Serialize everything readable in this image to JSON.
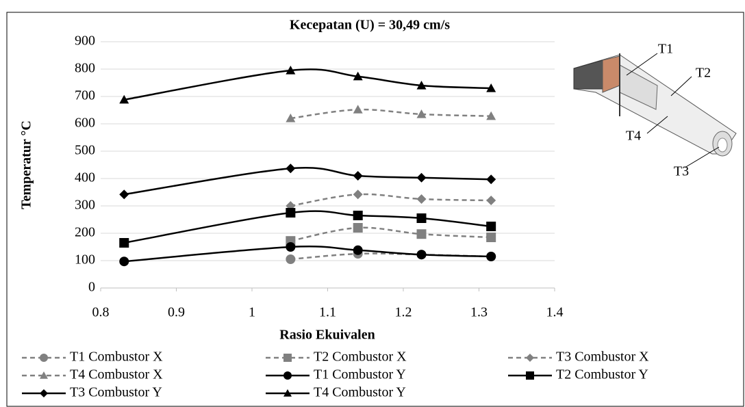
{
  "chart_data": {
    "type": "line",
    "title": "Kecepatan (U) = 30,49 cm/s",
    "x_label": "Rasio Ekuivalen",
    "y_label": "Temperatur °C",
    "x": [
      0.831,
      1.051,
      1.14,
      1.224,
      1.316
    ],
    "xlim": [
      0.8,
      1.4
    ],
    "xticks": [
      0.8,
      0.9,
      1,
      1.1,
      1.2,
      1.3,
      1.4
    ],
    "ylim": [
      0,
      900
    ],
    "yticks": [
      0,
      100,
      200,
      300,
      400,
      500,
      600,
      700,
      800,
      900
    ],
    "grid": true,
    "smooth": true,
    "series": [
      {
        "name": "T1 Combustor X",
        "color": "#808080",
        "line_style": "dashed",
        "marker": "circle",
        "values": [
          null,
          105,
          125,
          122,
          115
        ]
      },
      {
        "name": "T2 Combustor X",
        "color": "#808080",
        "line_style": "dashed",
        "marker": "square",
        "values": [
          null,
          172,
          220,
          197,
          185
        ]
      },
      {
        "name": "T3 Combustor X",
        "color": "#808080",
        "line_style": "dashed",
        "marker": "diamond",
        "values": [
          null,
          300,
          342,
          325,
          320
        ]
      },
      {
        "name": "T4 Combustor X",
        "color": "#808080",
        "line_style": "dashed",
        "marker": "triangle",
        "values": [
          null,
          620,
          652,
          635,
          628
        ]
      },
      {
        "name": "T1 Combustor Y",
        "color": "#000000",
        "line_style": "solid",
        "marker": "circle",
        "values": [
          97,
          150,
          138,
          122,
          115
        ]
      },
      {
        "name": "T2 Combustor Y",
        "color": "#000000",
        "line_style": "solid",
        "marker": "square",
        "values": [
          165,
          275,
          265,
          255,
          225
        ]
      },
      {
        "name": "T3 Combustor Y",
        "color": "#000000",
        "line_style": "solid",
        "marker": "diamond",
        "values": [
          342,
          437,
          410,
          403,
          397
        ]
      },
      {
        "name": "T4 Combustor Y",
        "color": "#000000",
        "line_style": "solid",
        "marker": "triangle",
        "values": [
          688,
          795,
          773,
          740,
          730
        ]
      }
    ],
    "annotations": [
      "T1",
      "T2",
      "T4",
      "T3"
    ]
  }
}
